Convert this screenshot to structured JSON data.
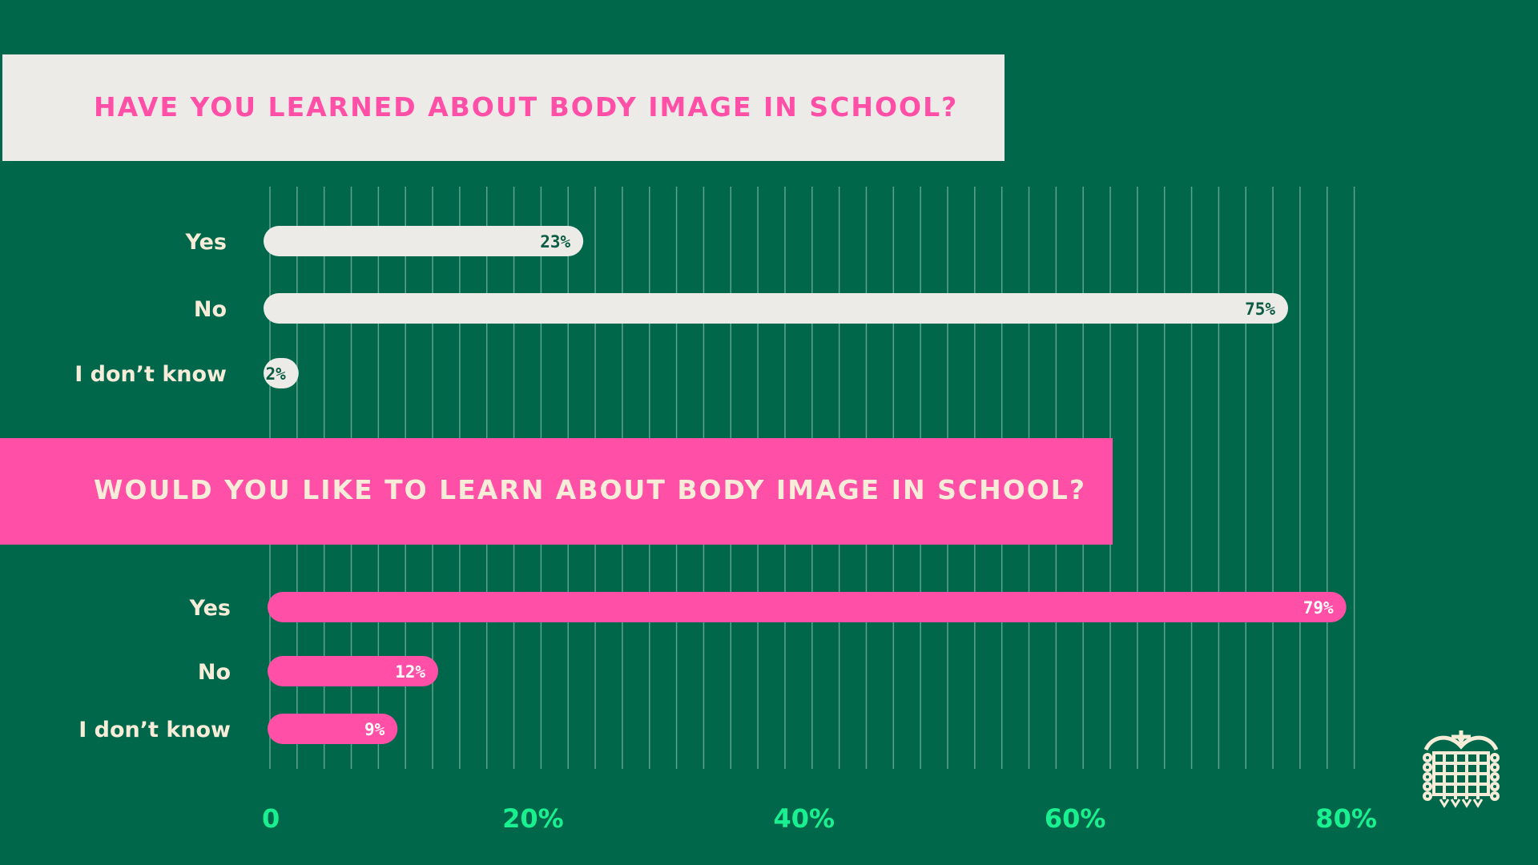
{
  "colors": {
    "background": "#00674b",
    "light_bar": "#edebe8",
    "pink": "#ff4fa7",
    "label_text": "#f6ecd8",
    "tick_text": "#19f08f",
    "gridline": "#5ea48c",
    "value_text_dark": "#0b5c44",
    "value_text_light": "#ffffff"
  },
  "logo": {
    "icon": "portcullis-icon"
  },
  "chart_data": [
    {
      "type": "bar",
      "orientation": "horizontal",
      "title": "HAVE YOU LEARNED ABOUT BODY IMAGE IN SCHOOL?",
      "categories": [
        "Yes",
        "No",
        "I don’t know"
      ],
      "values": [
        23,
        75,
        2
      ],
      "value_labels": [
        "23%",
        "75%",
        "2%"
      ],
      "xlim": [
        0,
        80
      ],
      "bar_color": "#edebe8",
      "title_bg": "#edebe8",
      "title_color": "#ff4fa7"
    },
    {
      "type": "bar",
      "orientation": "horizontal",
      "title": "WOULD YOU LIKE TO LEARN ABOUT BODY IMAGE IN SCHOOL?",
      "categories": [
        "Yes",
        "No",
        "I don’t know"
      ],
      "values": [
        79,
        12,
        9
      ],
      "value_labels": [
        "79%",
        "12%",
        "9%"
      ],
      "xlim": [
        0,
        80
      ],
      "bar_color": "#ff4fa7",
      "title_bg": "#ff4fa7",
      "title_color": "#f6ecd8"
    }
  ],
  "x_axis": {
    "ticks": [
      0,
      20,
      40,
      60,
      80
    ],
    "tick_labels": [
      "0",
      "20%",
      "40%",
      "60%",
      "80%"
    ],
    "minor_step": 2,
    "grid": true
  }
}
